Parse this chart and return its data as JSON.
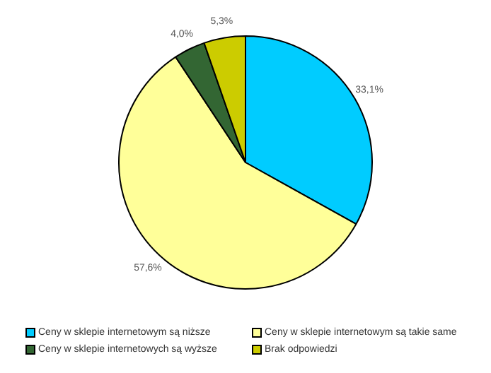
{
  "chart_data": {
    "type": "pie",
    "categories": [
      "Ceny w sklepie internetowym są niższe",
      "Ceny w sklepie internetowym są takie same",
      "Ceny w sklepie internetowych są wyższe",
      "Brak odpowiedzi"
    ],
    "values": [
      33.1,
      57.6,
      4.0,
      5.3
    ],
    "colors": [
      "#00ccff",
      "#ffff99",
      "#336633",
      "#cccc00"
    ],
    "value_labels": [
      "33,1%",
      "57,6%",
      "4,0%",
      "5,3%"
    ],
    "legend": "bottom"
  }
}
